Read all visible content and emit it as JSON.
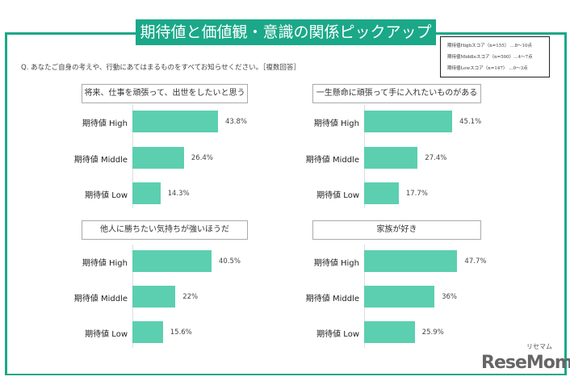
{
  "title": "期待値と価値観・意識の関係ピックアップ",
  "question": "Q. あなたご自身の考えや、行動にあてはまるものをすべてお知らせください。［複数回答］",
  "legend": [
    "期待値Highスコア（n=155） …8～10点",
    "期待値Middleスコア（n=500）…4～7点",
    "期待値Lowスコア（n=147） …0～3点"
  ],
  "logo": {
    "text": "ReseMom",
    "kana": "リセマム"
  },
  "colors": {
    "accent": "#1ba888",
    "bar": "#5ccfb0"
  },
  "chart_data": [
    {
      "type": "bar",
      "orientation": "horizontal",
      "title": "将来、仕事を頑張って、出世をしたいと思う",
      "categories": [
        "期待値 High",
        "期待値 Middle",
        "期待値 Low"
      ],
      "values": [
        43.8,
        26.4,
        14.3
      ],
      "labels": [
        "43.8%",
        "26.4%",
        "14.3%"
      ]
    },
    {
      "type": "bar",
      "orientation": "horizontal",
      "title": "一生懸命に頑張って手に入れたいものがある",
      "categories": [
        "期待値 High",
        "期待値 Middle",
        "期待値 Low"
      ],
      "values": [
        45.1,
        27.4,
        17.7
      ],
      "labels": [
        "45.1%",
        "27.4%",
        "17.7%"
      ]
    },
    {
      "type": "bar",
      "orientation": "horizontal",
      "title": "他人に勝ちたい気持ちが強いほうだ",
      "categories": [
        "期待値 High",
        "期待値 Middle",
        "期待値 Low"
      ],
      "values": [
        40.5,
        22,
        15.6
      ],
      "labels": [
        "40.5%",
        "22%",
        "15.6%"
      ]
    },
    {
      "type": "bar",
      "orientation": "horizontal",
      "title": "家族が好き",
      "categories": [
        "期待値 High",
        "期待値 Middle",
        "期待値 Low"
      ],
      "values": [
        47.7,
        36,
        25.9
      ],
      "labels": [
        "47.7%",
        "36%",
        "25.9%"
      ]
    }
  ]
}
